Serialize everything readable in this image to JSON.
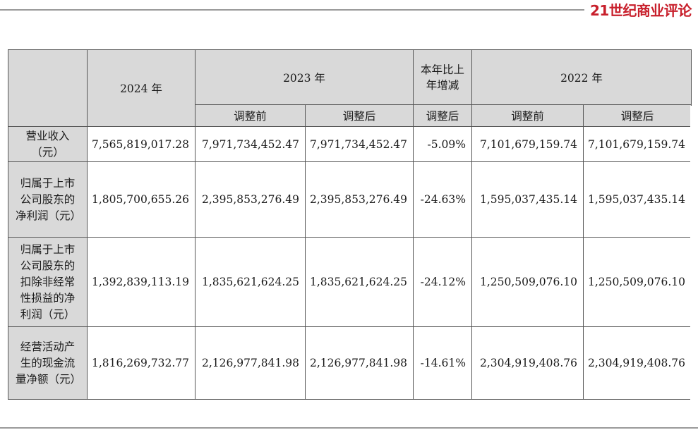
{
  "brand": {
    "logo_text": "21世纪商业评论"
  },
  "table": {
    "year_2024": "2024 年",
    "year_2023": "2023 年",
    "change_header": "本年比上年增减",
    "year_2022": "2022 年",
    "sub_before": "调整前",
    "sub_after": "调整后",
    "rows": [
      {
        "label": "营业收入（元）",
        "v2024": "7,565,819,017.28",
        "v2023_before": "7,971,734,452.47",
        "v2023_after": "7,971,734,452.47",
        "change": "-5.09%",
        "v2022_before": "7,101,679,159.74",
        "v2022_after": "7,101,679,159.74"
      },
      {
        "label": "归属于上市公司股东的净利润（元）",
        "v2024": "1,805,700,655.26",
        "v2023_before": "2,395,853,276.49",
        "v2023_after": "2,395,853,276.49",
        "change": "-24.63%",
        "v2022_before": "1,595,037,435.14",
        "v2022_after": "1,595,037,435.14"
      },
      {
        "label": "归属于上市公司股东的扣除非经常性损益的净利润（元）",
        "v2024": "1,392,839,113.19",
        "v2023_before": "1,835,621,624.25",
        "v2023_after": "1,835,621,624.25",
        "change": "-24.12%",
        "v2022_before": "1,250,509,076.10",
        "v2022_after": "1,250,509,076.10"
      },
      {
        "label": "经营活动产生的现金流量净额（元）",
        "v2024": "1,816,269,732.77",
        "v2023_before": "2,126,977,841.98",
        "v2023_after": "2,126,977,841.98",
        "change": "-14.61%",
        "v2022_before": "2,304,919,408.76",
        "v2022_after": "2,304,919,408.76"
      }
    ]
  }
}
